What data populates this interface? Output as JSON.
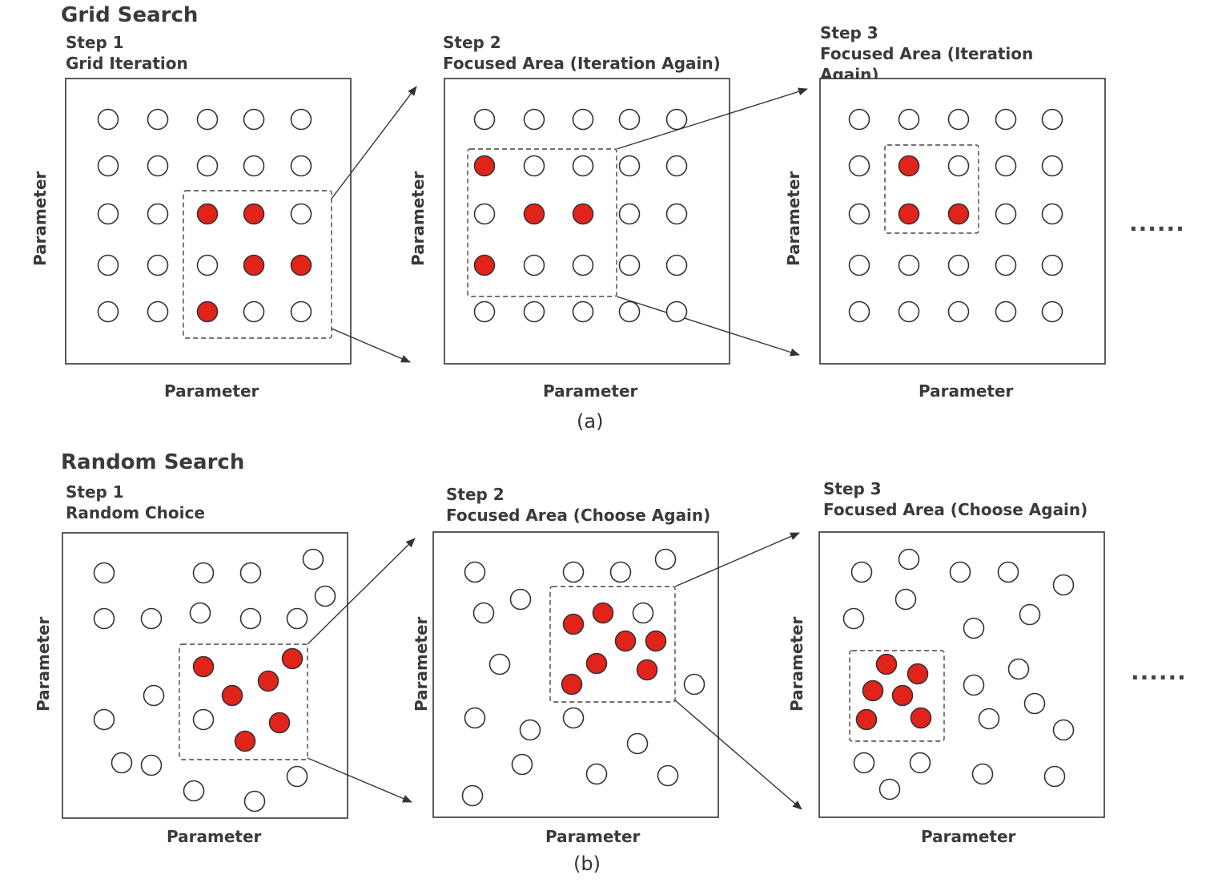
{
  "grid_section": {
    "title": "Grid Search",
    "steps": [
      {
        "step": "Step 1",
        "desc": "Grid Iteration"
      },
      {
        "step": "Step 2",
        "desc": "Focused Area (Iteration Again)"
      },
      {
        "step": "Step 3",
        "desc": "Focused Area (Iteration",
        "desc2": "Again)"
      }
    ],
    "axis_label": "Parameter",
    "caption": "(a)",
    "continuation": "......"
  },
  "random_section": {
    "title": "Random Search",
    "steps": [
      {
        "step": "Step 1",
        "desc": "Random Choice"
      },
      {
        "step": "Step 2",
        "desc": "Focused Area (Choose Again)"
      },
      {
        "step": "Step 3",
        "desc": "Focused Area (Choose Again)"
      }
    ],
    "axis_label": "Parameter",
    "caption": "(b)",
    "continuation": "......"
  },
  "colors": {
    "highlight": "#e2231a",
    "stroke": "#333333"
  }
}
